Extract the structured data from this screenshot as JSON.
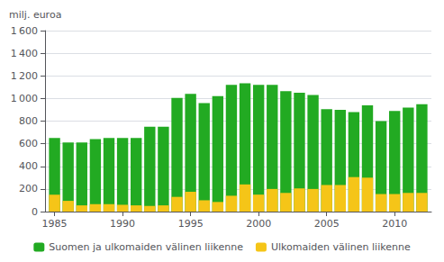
{
  "chart_data": {
    "type": "bar",
    "stacked": true,
    "ylabel": "milj. euroa",
    "x": [
      1985,
      1986,
      1987,
      1988,
      1989,
      1990,
      1991,
      1992,
      1993,
      1994,
      1995,
      1996,
      1997,
      1998,
      1999,
      2000,
      2001,
      2002,
      2003,
      2004,
      2005,
      2006,
      2007,
      2008,
      2009,
      2010,
      2011,
      2012
    ],
    "xlim": [
      1984.3,
      2012.7
    ],
    "xticks": [
      1985,
      1990,
      1995,
      2000,
      2005,
      2010
    ],
    "ylim": [
      0,
      1600
    ],
    "yticks": [
      0,
      200,
      400,
      600,
      800,
      {
        "value": 1000,
        "label": "1 000"
      },
      {
        "value": 1200,
        "label": "1 200"
      },
      {
        "value": 1400,
        "label": "1 400"
      },
      {
        "value": 1600,
        "label": "1 600"
      }
    ],
    "grid": true,
    "legend": "bottom",
    "series": [
      {
        "name": "Suomen ja ulkomaiden välinen liikenne",
        "color": "#22aa22",
        "values": [
          650,
          610,
          610,
          640,
          650,
          650,
          650,
          750,
          750,
          1005,
          1040,
          960,
          1020,
          1120,
          1135,
          1120,
          1120,
          1065,
          1050,
          1030,
          905,
          900,
          880,
          940,
          800,
          890,
          920,
          950
        ]
      },
      {
        "name": "Ulkomaiden välinen liikenne",
        "color": "#f5c518",
        "values": [
          150,
          95,
          55,
          65,
          65,
          60,
          55,
          50,
          55,
          130,
          175,
          100,
          85,
          140,
          240,
          150,
          200,
          165,
          205,
          200,
          235,
          235,
          305,
          300,
          155,
          155,
          165,
          165
        ]
      }
    ]
  }
}
